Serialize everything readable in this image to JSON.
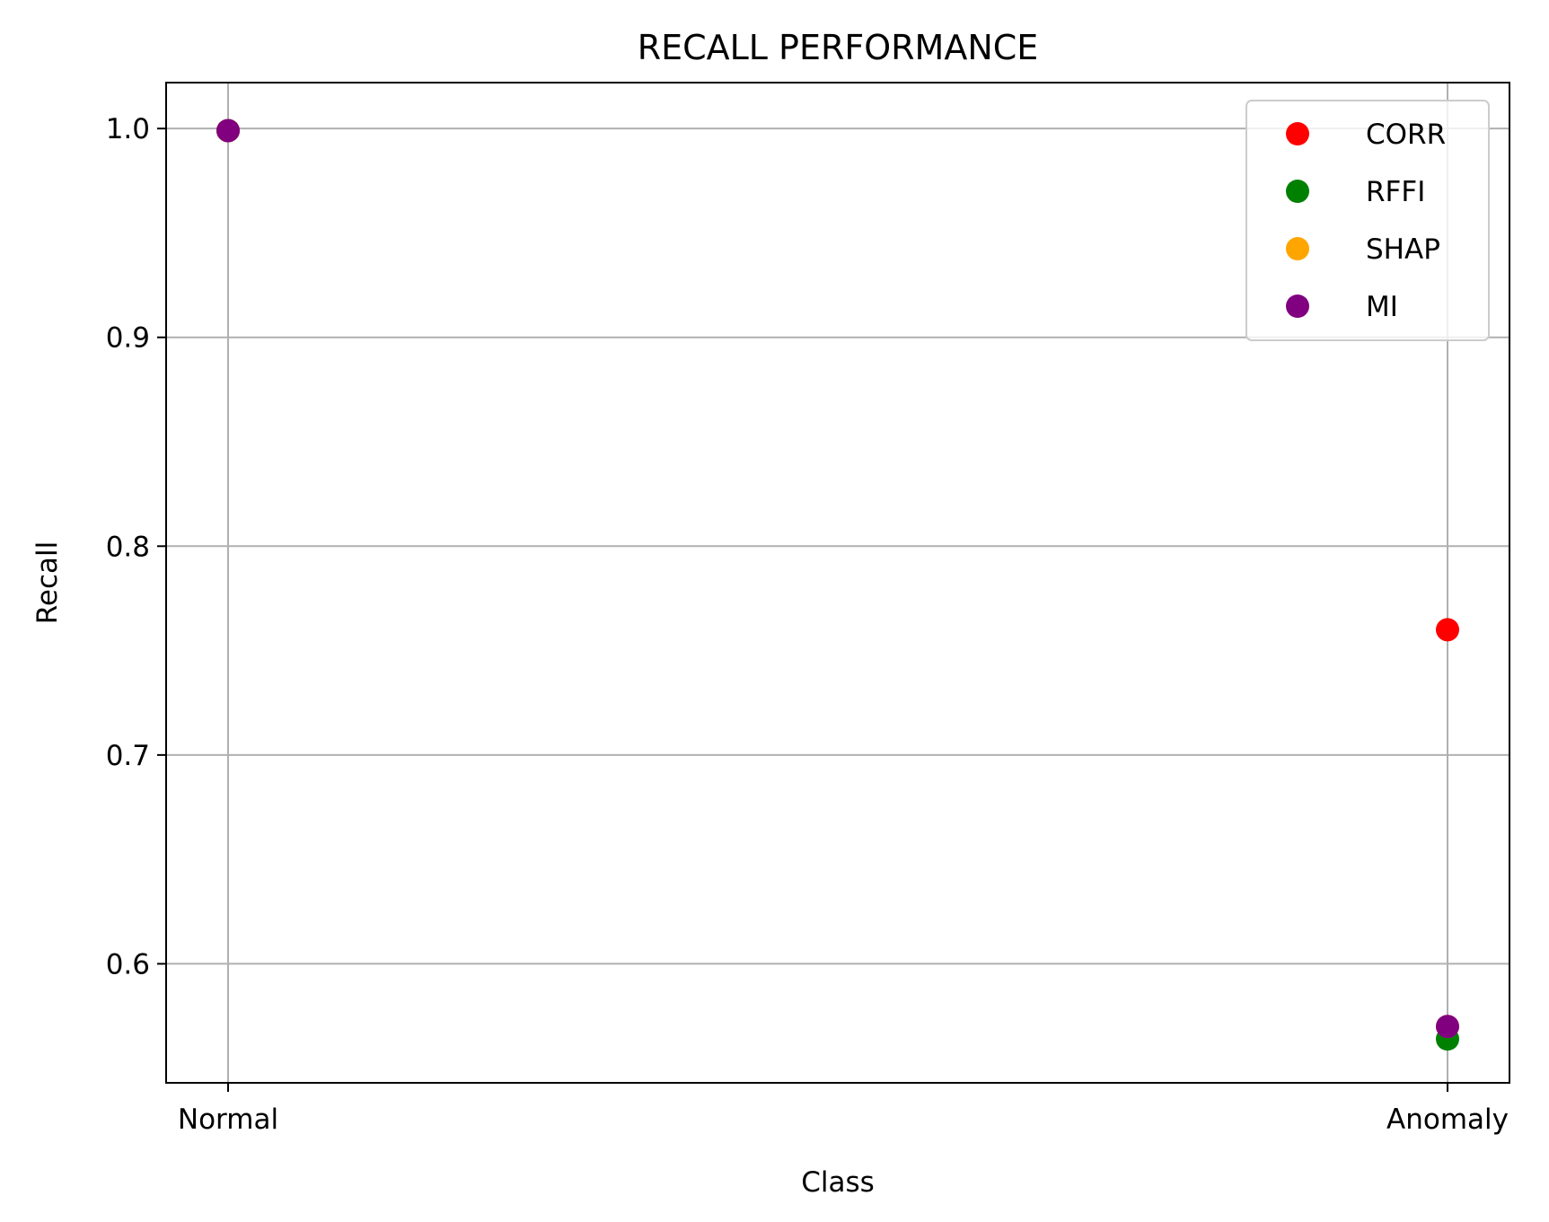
{
  "chart_data": {
    "type": "scatter",
    "title": "RECALL PERFORMANCE",
    "xlabel": "Class",
    "ylabel": "Recall",
    "categories": [
      "Normal",
      "Anomaly"
    ],
    "ylim": [
      0.543,
      1.022
    ],
    "yticks": [
      "0.6",
      "0.7",
      "0.8",
      "0.9",
      "1.0"
    ],
    "grid": true,
    "legend_position": "top-right",
    "series": [
      {
        "name": "CORR",
        "color": "#ff0000",
        "values": [
          0.999,
          0.76
        ]
      },
      {
        "name": "RFFI",
        "color": "#008000",
        "values": [
          0.999,
          0.564
        ]
      },
      {
        "name": "SHAP",
        "color": "#ffa500",
        "values": [
          0.999,
          0.57
        ]
      },
      {
        "name": "MI",
        "color": "#800080",
        "values": [
          0.999,
          0.57
        ]
      }
    ]
  }
}
